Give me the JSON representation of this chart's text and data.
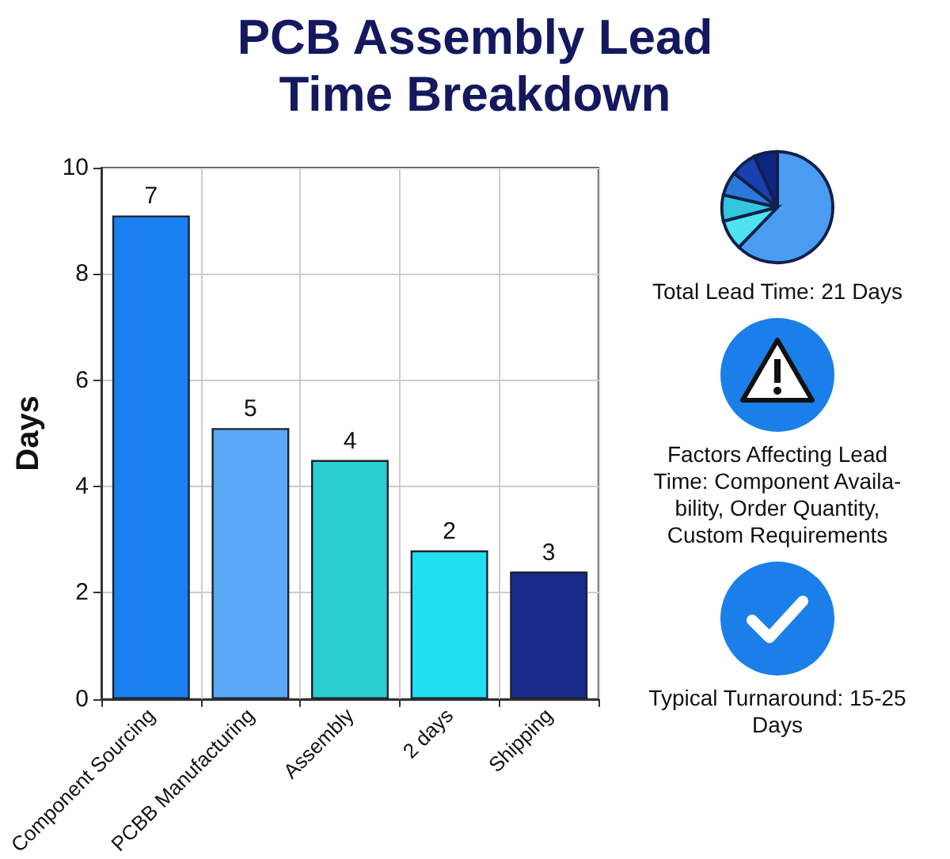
{
  "chart_data": {
    "type": "bar",
    "title": "PCB Assembly Lead Time Breakdown",
    "ylabel": "Days",
    "categories": [
      "Component Sourcing",
      "PCBB Manufacturing",
      "Assembly",
      "2 days",
      "Shipping"
    ],
    "values": [
      9.1,
      5.1,
      4.5,
      2.8,
      2.4
    ],
    "colors": [
      "#1a7ff0",
      "#5aa8f5",
      "#2bcfcf",
      "#20e0f0",
      "#1a2a8a"
    ],
    "ylim": [
      0,
      10
    ],
    "yticks": [
      0,
      2,
      4,
      6,
      8,
      10
    ],
    "grid": true,
    "annotations": [
      {
        "text": "7",
        "x": "Component Sourcing",
        "y": 9.1
      },
      {
        "text": "5",
        "x": "PCBB Manufacturing",
        "y": 5.1
      },
      {
        "text": "4",
        "x": "Assembly",
        "y": 4.5
      },
      {
        "text": "2",
        "x": "2 days",
        "y": 2.8
      },
      {
        "text": "3",
        "x": "Shipping",
        "y": 2.4
      },
      "Total Lead Time: 21 Days",
      "Factors Affecting Lead Time: Component Availa-bility, Order Quantity, Custom Requirements",
      "Typical Turnaround: 15-25 Days"
    ]
  }
}
